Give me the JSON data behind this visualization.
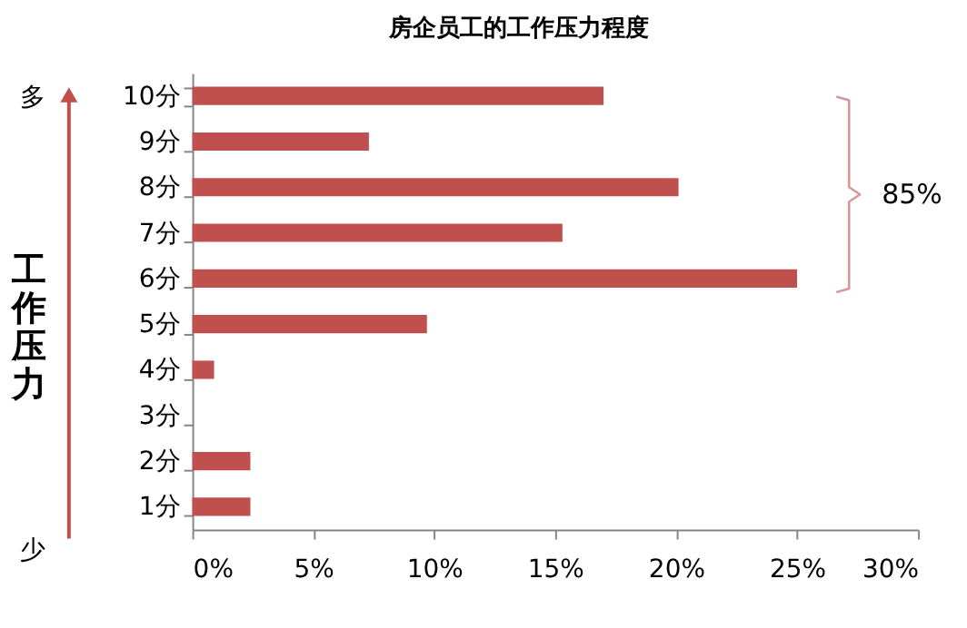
{
  "chart_data": {
    "type": "bar",
    "orientation": "horizontal",
    "title": "房企员工的工作压力程度",
    "ylabel": "工作压力",
    "categories": [
      "10分",
      "9分",
      "8分",
      "7分",
      "6分",
      "5分",
      "4分",
      "3分",
      "2分",
      "1分"
    ],
    "values": [
      17,
      7.3,
      20.1,
      15.3,
      25,
      9.7,
      0.9,
      0,
      2.4,
      2.4
    ],
    "color": "#c0504d",
    "xlim": [
      0,
      30
    ],
    "xticks": [
      {
        "value": 0,
        "label": "0%"
      },
      {
        "value": 5,
        "label": "5%"
      },
      {
        "value": 10,
        "label": "10%"
      },
      {
        "value": 15,
        "label": "15%"
      },
      {
        "value": 20,
        "label": "20%"
      },
      {
        "value": 25,
        "label": "25%"
      },
      {
        "value": 30,
        "label": "30%"
      }
    ],
    "annotations": [
      "多",
      "少",
      "85%"
    ],
    "grid": false
  }
}
